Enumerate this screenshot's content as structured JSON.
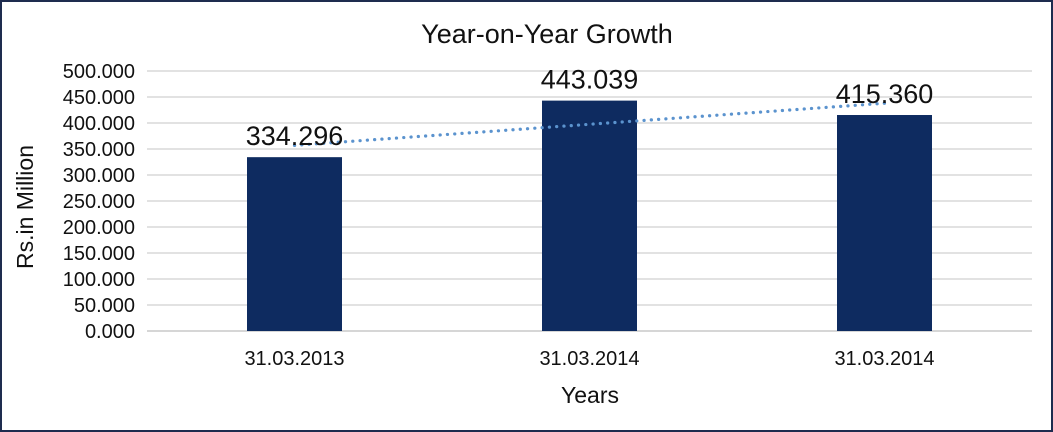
{
  "chart_data": {
    "type": "bar",
    "title": "Year-on-Year Growth",
    "xlabel": "Years",
    "ylabel": "Rs.in Million",
    "categories": [
      "31.03.2013",
      "31.03.2014",
      "31.03.2014"
    ],
    "values": [
      334.296,
      443.039,
      415.36
    ],
    "value_labels": [
      "334.296",
      "443.039",
      "415.360"
    ],
    "ylim": [
      0,
      500
    ],
    "ytick_step": 50,
    "ytick_labels": [
      "0.000",
      "50.000",
      "100.000",
      "150.000",
      "200.000",
      "250.000",
      "300.000",
      "350.000",
      "400.000",
      "450.000",
      "500.000"
    ],
    "grid": true,
    "legend_position": "none",
    "trendline": {
      "type": "linear",
      "style": "dotted",
      "first_value": 357,
      "last_value": 438
    },
    "colors": {
      "bar": "#0e2b60",
      "trendline": "#5b93ce",
      "gridline": "#d9d9d9",
      "axis_line": "#c9c9c9",
      "text": "#111111",
      "frame_border": "#1e2c4f",
      "background": "#ffffff"
    }
  }
}
